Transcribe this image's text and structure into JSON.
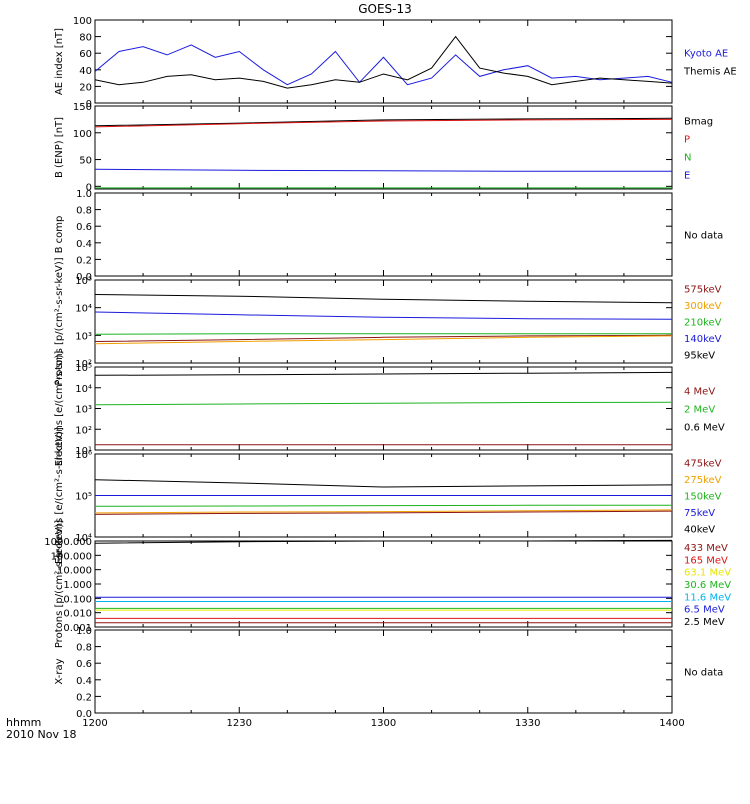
{
  "title": "GOES-13",
  "footer": {
    "left_top": "hhmm",
    "left_bottom": "2010 Nov 18"
  },
  "time_ticks": [
    "1200",
    "1230",
    "1300",
    "1330",
    "1400"
  ],
  "chart_data": [
    {
      "type": "line",
      "ylabel": "AE index [nT]",
      "ylim": [
        0,
        100
      ],
      "yticks": [
        0,
        20,
        40,
        60,
        80,
        100
      ],
      "yticklabels": [
        "0",
        "20",
        "40",
        "60",
        "80",
        "100"
      ],
      "x": [
        0,
        5,
        10,
        15,
        20,
        25,
        30,
        35,
        40,
        45,
        50,
        55,
        60,
        65,
        70,
        75,
        80,
        85,
        90,
        95,
        100,
        105,
        110,
        115,
        120
      ],
      "series": [
        {
          "name": "Kyoto AE",
          "color": "#1a1adc",
          "values": [
            38,
            62,
            68,
            58,
            70,
            55,
            62,
            40,
            22,
            35,
            62,
            25,
            55,
            22,
            30,
            58,
            32,
            40,
            45,
            30,
            32,
            28,
            30,
            32,
            25
          ]
        },
        {
          "name": "Themis AE",
          "color": "#000000",
          "values": [
            28,
            22,
            25,
            32,
            34,
            28,
            30,
            26,
            18,
            22,
            28,
            25,
            35,
            28,
            42,
            80,
            42,
            36,
            32,
            22,
            26,
            30,
            28,
            26,
            24
          ]
        }
      ]
    },
    {
      "type": "line",
      "ylabel": "B (ENP) [nT]",
      "ylim": [
        -5,
        150
      ],
      "yticks": [
        0,
        50,
        100,
        150
      ],
      "yticklabels": [
        "0",
        "50",
        "100",
        "150"
      ],
      "x": [
        0,
        30,
        60,
        90,
        120
      ],
      "series": [
        {
          "name": "Bmag",
          "color": "#000000",
          "values": [
            113,
            118,
            124,
            126,
            127
          ]
        },
        {
          "name": "P",
          "color": "#dc1414",
          "values": [
            111,
            117,
            122,
            124,
            125
          ]
        },
        {
          "name": "N",
          "color": "#1eb41e",
          "values": [
            -3,
            -3,
            -3,
            -3,
            -3
          ]
        },
        {
          "name": "E",
          "color": "#1a1adc",
          "values": [
            32,
            30,
            29,
            28,
            28
          ]
        }
      ]
    },
    {
      "type": "line",
      "ylabel": "B comp",
      "ylim": [
        0,
        1
      ],
      "yticks": [
        0,
        0.2,
        0.4,
        0.6,
        0.8,
        1.0
      ],
      "yticklabels": [
        "0.0",
        "0.2",
        "0.4",
        "0.6",
        "0.8",
        "1.0"
      ],
      "note": "No data",
      "series": []
    },
    {
      "type": "line",
      "log": true,
      "ylabel": "Protons [p/(cm²-s-sr-keV)]",
      "ylim": [
        100,
        100000
      ],
      "yticks": [
        100,
        1000,
        10000,
        100000
      ],
      "yticklabels": [
        "10²",
        "10³",
        "10⁴",
        "10⁵"
      ],
      "x": [
        0,
        30,
        60,
        90,
        120
      ],
      "series": [
        {
          "name": "575keV",
          "color": "#8c1414",
          "values": [
            600,
            700,
            850,
            950,
            1000
          ]
        },
        {
          "name": "300keV",
          "color": "#f0a000",
          "values": [
            500,
            600,
            700,
            850,
            950
          ]
        },
        {
          "name": "210keV",
          "color": "#1eb41e",
          "values": [
            1100,
            1150,
            1150,
            1150,
            1150
          ]
        },
        {
          "name": "140keV",
          "color": "#1a1adc",
          "values": [
            7000,
            5500,
            4500,
            4000,
            3800
          ]
        },
        {
          "name": "95keV",
          "color": "#000000",
          "values": [
            30000,
            26000,
            20000,
            17000,
            15000
          ]
        }
      ]
    },
    {
      "type": "line",
      "log": true,
      "ylabel": "Electrons [e/(cm²-s-sr)]",
      "ylim": [
        10,
        100000
      ],
      "yticks": [
        10,
        100,
        1000,
        10000,
        100000
      ],
      "yticklabels": [
        "10¹",
        "10²",
        "10³",
        "10⁴",
        "10⁵"
      ],
      "x": [
        0,
        30,
        60,
        90,
        120
      ],
      "series": [
        {
          "name": "4 MeV",
          "color": "#8c1414",
          "values": [
            18,
            18,
            18,
            18,
            18
          ]
        },
        {
          "name": "2 MeV",
          "color": "#1eb41e",
          "values": [
            1500,
            1650,
            1800,
            1950,
            2000
          ]
        },
        {
          "name": "0.6 MeV",
          "color": "#000000",
          "values": [
            40000,
            42000,
            46000,
            50000,
            55000
          ]
        }
      ]
    },
    {
      "type": "line",
      "log": true,
      "ylabel": "Electrons [e/(cm²-s-sr-keV)]",
      "ylim": [
        10000,
        1000000
      ],
      "yticks": [
        10000,
        100000,
        1000000
      ],
      "yticklabels": [
        "10⁴",
        "10⁵",
        "10⁶"
      ],
      "x": [
        0,
        30,
        60,
        90,
        120
      ],
      "series": [
        {
          "name": "475keV",
          "color": "#8c1414",
          "values": [
            35000,
            37000,
            38000,
            40000,
            42000
          ]
        },
        {
          "name": "275keV",
          "color": "#f0a000",
          "values": [
            38000,
            40000,
            41000,
            43000,
            45000
          ]
        },
        {
          "name": "150keV",
          "color": "#1eb41e",
          "values": [
            55000,
            56000,
            57000,
            58000,
            58000
          ]
        },
        {
          "name": "75keV",
          "color": "#1a1adc",
          "values": [
            100000,
            100000,
            100000,
            100000,
            100000
          ]
        },
        {
          "name": "40keV",
          "color": "#000000",
          "values": [
            240000,
            200000,
            160000,
            170000,
            180000
          ]
        }
      ]
    },
    {
      "type": "line",
      "log": true,
      "ylabel": "Protons [p/(cm²-s-sr-keV)]",
      "ylim": [
        0.001,
        1000
      ],
      "yticks": [
        0.001,
        0.01,
        0.1,
        1,
        10,
        100,
        1000
      ],
      "yticklabels": [
        "0.001",
        "0.010",
        "0.100",
        "1.000",
        "10.000",
        "100.000",
        "1000.000"
      ],
      "x": [
        0,
        30,
        60,
        90,
        120
      ],
      "series": [
        {
          "name": "433 MeV",
          "color": "#8c1414",
          "values": [
            0.002,
            0.002,
            0.002,
            0.002,
            0.002
          ]
        },
        {
          "name": "165 MeV",
          "color": "#dc1414",
          "values": [
            0.004,
            0.004,
            0.004,
            0.004,
            0.004
          ]
        },
        {
          "name": "63.1 MeV",
          "color": "#e6e600",
          "values": [
            0.015,
            0.015,
            0.015,
            0.015,
            0.015
          ]
        },
        {
          "name": "30.6 MeV",
          "color": "#1eb41e",
          "values": [
            0.02,
            0.02,
            0.02,
            0.02,
            0.02
          ]
        },
        {
          "name": "11.6 MeV",
          "color": "#00b4f0",
          "values": [
            0.06,
            0.06,
            0.06,
            0.06,
            0.06
          ]
        },
        {
          "name": "6.5 MeV",
          "color": "#1a1adc",
          "values": [
            0.12,
            0.12,
            0.12,
            0.12,
            0.12
          ]
        },
        {
          "name": "2.5 MeV",
          "color": "#000000",
          "values": [
            700,
            900,
            1000,
            1000,
            1100
          ]
        }
      ]
    },
    {
      "type": "line",
      "ylabel": "X-ray",
      "ylim": [
        0,
        1
      ],
      "yticks": [
        0,
        0.2,
        0.4,
        0.6,
        0.8,
        1.0
      ],
      "yticklabels": [
        "0.0",
        "0.2",
        "0.4",
        "0.6",
        "0.8",
        "1.0"
      ],
      "note": "No data",
      "series": []
    }
  ]
}
